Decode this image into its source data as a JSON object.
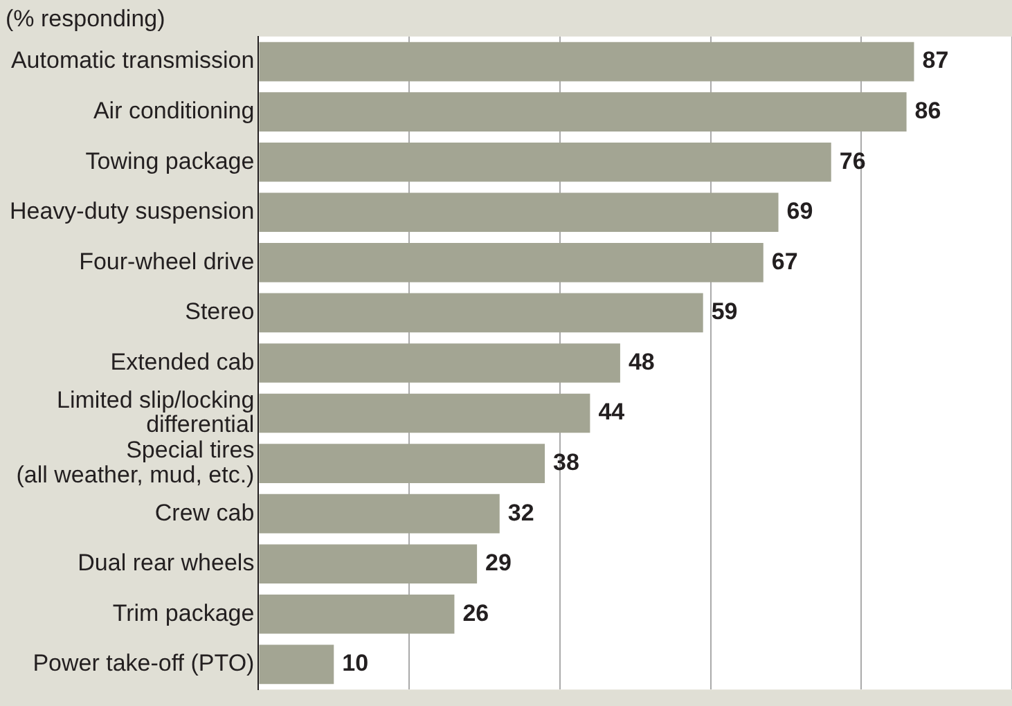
{
  "chart_data": {
    "type": "bar",
    "orientation": "horizontal",
    "title": "(% responding)",
    "categories": [
      "Automatic transmission",
      "Air conditioning",
      "Towing package",
      "Heavy-duty suspension",
      "Four-wheel drive",
      "Stereo",
      "Extended cab",
      "Limited slip/locking differential",
      "Special tires (all weather, mud, etc.)",
      "Crew cab",
      "Dual rear wheels",
      "Trim package",
      "Power take-off (PTO)"
    ],
    "values": [
      87,
      86,
      76,
      69,
      67,
      59,
      48,
      44,
      38,
      32,
      29,
      26,
      10
    ],
    "color": "#a3a593",
    "grid": "x",
    "tick_labels": "y",
    "data_labels": true,
    "legend": false
  }
}
